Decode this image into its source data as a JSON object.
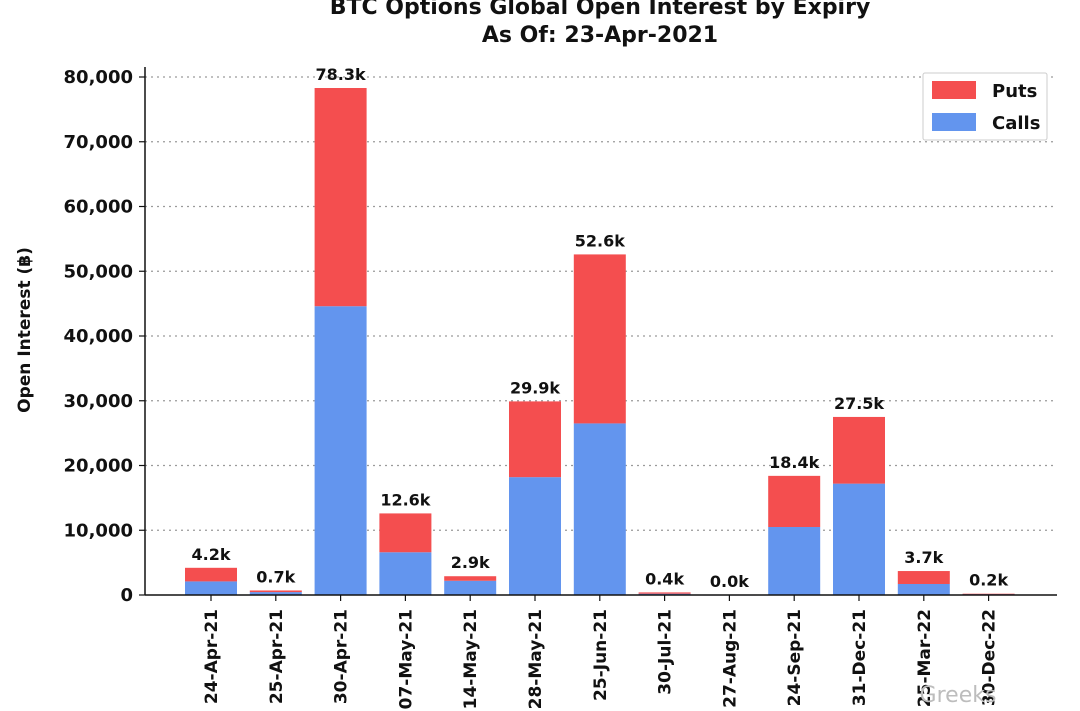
{
  "chart_data": {
    "type": "bar",
    "stacked": true,
    "title": "BTC Options Global Open Interest by Expiry",
    "subtitle": "As Of: 23-Apr-2021",
    "xlabel": "",
    "ylabel": "Open Interest (฿)",
    "ylim": [
      0,
      80000
    ],
    "yticks": [
      "0",
      "10,000",
      "20,000",
      "30,000",
      "40,000",
      "50,000",
      "60,000",
      "70,000",
      "80,000"
    ],
    "grid": true,
    "legend_position": "top-right",
    "categories": [
      "24-Apr-21",
      "25-Apr-21",
      "30-Apr-21",
      "07-May-21",
      "14-May-21",
      "28-May-21",
      "25-Jun-21",
      "30-Jul-21",
      "27-Aug-21",
      "24-Sep-21",
      "31-Dec-21",
      "25-Mar-22",
      "30-Dec-22"
    ],
    "series": [
      {
        "name": "Calls",
        "color": "#6395ee",
        "values": [
          2100,
          450,
          44600,
          6600,
          2200,
          18200,
          26500,
          200,
          10,
          10500,
          17200,
          1700,
          150
        ]
      },
      {
        "name": "Puts",
        "color": "#f44e4f",
        "values": [
          2100,
          250,
          33700,
          6000,
          700,
          11700,
          26100,
          200,
          10,
          7900,
          10300,
          2000,
          50
        ]
      }
    ],
    "totals_labels": [
      "4.2k",
      "0.7k",
      "78.3k",
      "12.6k",
      "2.9k",
      "29.9k",
      "52.6k",
      "0.4k",
      "0.0k",
      "18.4k",
      "27.5k",
      "3.7k",
      "0.2k"
    ],
    "legend_order": [
      "Puts",
      "Calls"
    ]
  },
  "watermark": "Greeks"
}
